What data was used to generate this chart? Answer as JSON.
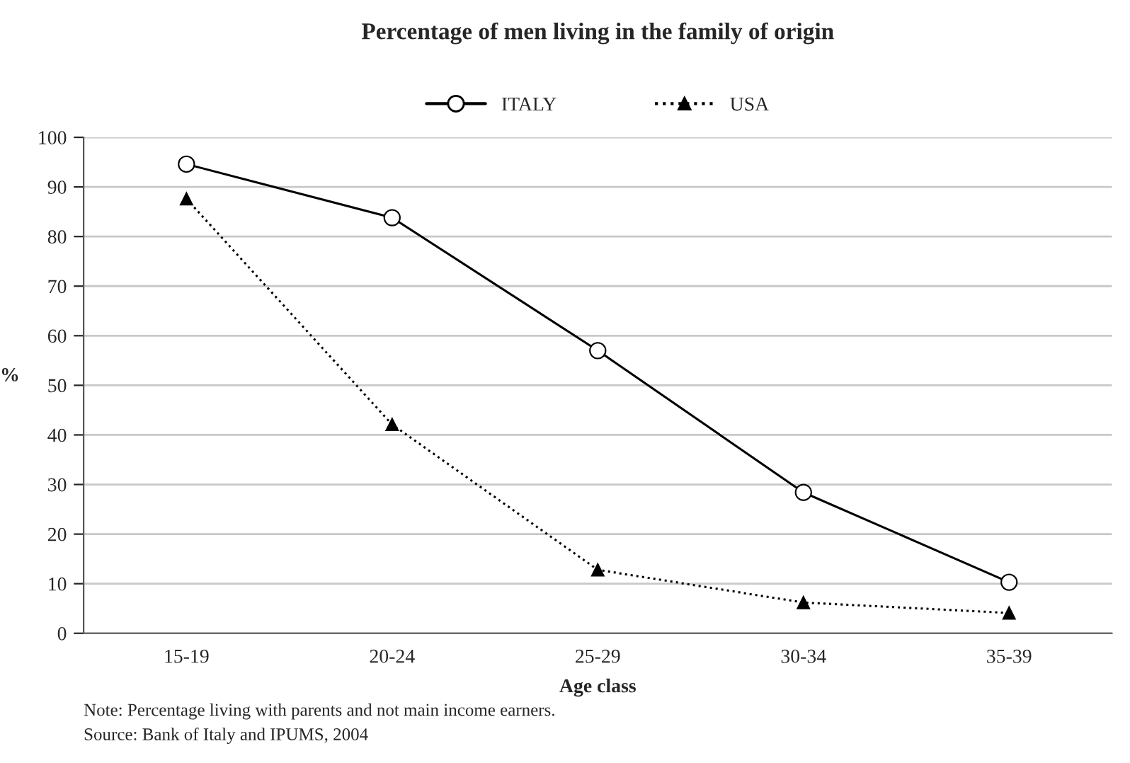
{
  "chart_data": {
    "type": "line",
    "title": "Percentage of men living in the family of origin",
    "xlabel": "Age class",
    "ylabel": "%",
    "categories": [
      "15-19",
      "20-24",
      "25-29",
      "30-34",
      "35-39"
    ],
    "series": [
      {
        "name": "ITALY",
        "color": "#000000",
        "values": [
          94.6,
          83.8,
          57.0,
          28.4,
          10.3
        ],
        "marker": "circle",
        "line_style": "solid"
      },
      {
        "name": "USA",
        "color": "#000000",
        "values": [
          87.6,
          42.1,
          12.8,
          6.2,
          4.1
        ],
        "marker": "triangle",
        "line_style": "dotted"
      }
    ],
    "ylim": [
      0,
      100
    ],
    "yticks": [
      0,
      10,
      20,
      30,
      40,
      50,
      60,
      70,
      80,
      90,
      100
    ],
    "grid": "y",
    "legend": "top",
    "annotations": [
      "Note: Percentage living with parents and not main income earners.",
      "Source: Bank of Italy and IPUMS, 2004"
    ]
  }
}
